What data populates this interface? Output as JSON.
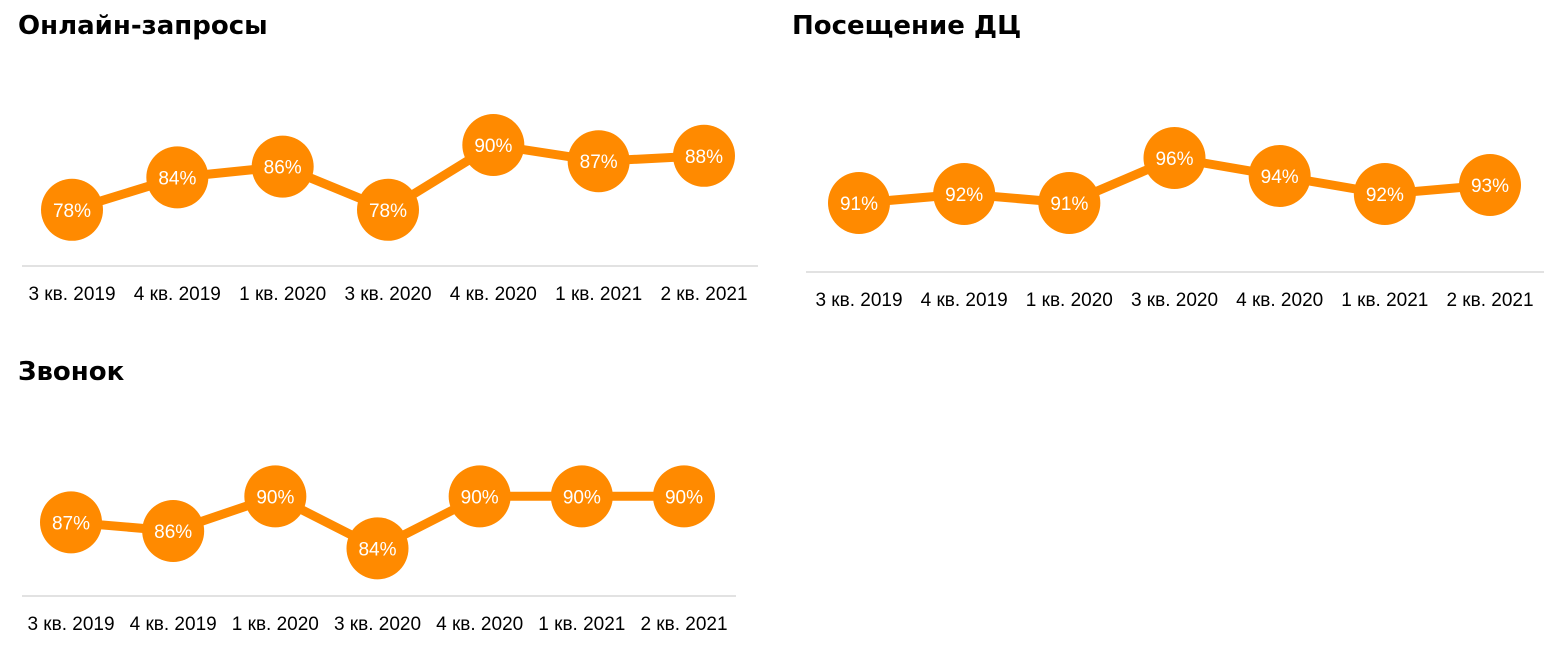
{
  "chart_data": [
    {
      "id": "online",
      "type": "line",
      "title": "Онлайн-запросы",
      "xlabel": "",
      "ylabel": "",
      "categories": [
        "3 кв. 2019",
        "4 кв. 2019",
        "1 кв. 2020",
        "3 кв. 2020",
        "4 кв. 2020",
        "1 кв. 2021",
        "2 кв. 2021"
      ],
      "values": [
        78,
        84,
        86,
        78,
        90,
        87,
        88
      ],
      "data_labels": [
        "78%",
        "84%",
        "86%",
        "78%",
        "90%",
        "87%",
        "88%"
      ],
      "ylim": [
        70,
        95
      ],
      "grid": false,
      "legend": "none",
      "color": "#ff8a00"
    },
    {
      "id": "visit",
      "type": "line",
      "title": "Посещение ДЦ",
      "xlabel": "",
      "ylabel": "",
      "categories": [
        "3 кв. 2019",
        "4 кв. 2019",
        "1 кв. 2020",
        "3 кв. 2020",
        "4 кв. 2020",
        "1 кв. 2021",
        "2 кв. 2021"
      ],
      "values": [
        91,
        92,
        91,
        96,
        94,
        92,
        93
      ],
      "data_labels": [
        "91%",
        "92%",
        "91%",
        "96%",
        "94%",
        "92%",
        "93%"
      ],
      "ylim": [
        85,
        100
      ],
      "grid": false,
      "legend": "none",
      "color": "#ff8a00"
    },
    {
      "id": "call",
      "type": "line",
      "title": "Звонок",
      "xlabel": "",
      "ylabel": "",
      "categories": [
        "3 кв. 2019",
        "4 кв. 2019",
        "1 кв. 2020",
        "3 кв. 2020",
        "4 кв. 2020",
        "1 кв. 2021",
        "2 кв. 2021"
      ],
      "values": [
        87,
        86,
        90,
        84,
        90,
        90,
        90
      ],
      "data_labels": [
        "87%",
        "86%",
        "90%",
        "84%",
        "90%",
        "90%",
        "90%"
      ],
      "ylim": [
        80,
        95
      ],
      "grid": false,
      "legend": "none",
      "color": "#ff8a00"
    }
  ]
}
